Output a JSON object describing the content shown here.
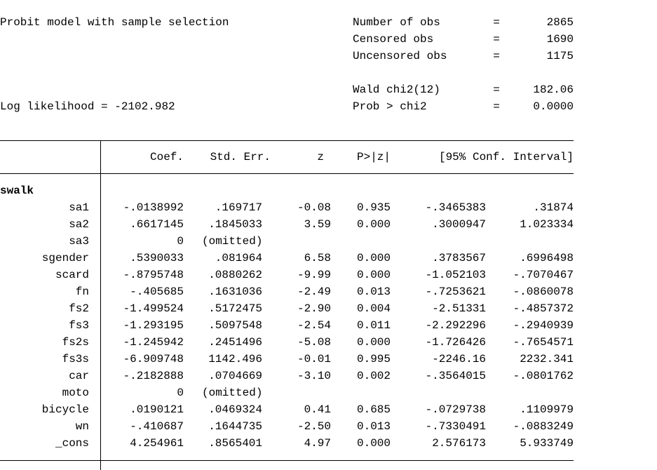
{
  "header": {
    "title": "Probit model with sample selection",
    "log_likelihood": "Log likelihood = -2102.982",
    "stats": [
      {
        "label": "Number of obs",
        "eq": "=",
        "value": "2865"
      },
      {
        "label": "Censored obs",
        "eq": "=",
        "value": "1690"
      },
      {
        "label": "Uncensored obs",
        "eq": "=",
        "value": "1175"
      },
      {
        "label": "Wald chi2(12)",
        "eq": "=",
        "value": "182.06"
      },
      {
        "label": "Prob > chi2",
        "eq": "=",
        "value": "0.0000"
      }
    ]
  },
  "table": {
    "headers": [
      "Coef.",
      "Std. Err.",
      "z",
      "P>|z|",
      "[95% Conf. Interval]"
    ],
    "group": "swalk",
    "rows": [
      [
        "sa1",
        "-.0138992",
        ".169717",
        "-0.08",
        "0.935",
        "-.3465383",
        ".31874"
      ],
      [
        "sa2",
        ".6617145",
        ".1845033",
        "3.59",
        "0.000",
        ".3000947",
        "1.023334"
      ],
      [
        "sa3",
        "0",
        "(omitted)"
      ],
      [
        "sgender",
        ".5390033",
        ".081964",
        "6.58",
        "0.000",
        ".3783567",
        ".6996498"
      ],
      [
        "scard",
        "-.8795748",
        ".0880262",
        "-9.99",
        "0.000",
        "-1.052103",
        "-.7070467"
      ],
      [
        "fn",
        "-.405685",
        ".1631036",
        "-2.49",
        "0.013",
        "-.7253621",
        "-.0860078"
      ],
      [
        "fs2",
        "-1.499524",
        ".5172475",
        "-2.90",
        "0.004",
        "-2.51331",
        "-.4857372"
      ],
      [
        "fs3",
        "-1.293195",
        ".5097548",
        "-2.54",
        "0.011",
        "-2.292296",
        "-.2940939"
      ],
      [
        "fs2s",
        "-1.245942",
        ".2451496",
        "-5.08",
        "0.000",
        "-1.726426",
        "-.7654571"
      ],
      [
        "fs3s",
        "-6.909748",
        "1142.496",
        "-0.01",
        "0.995",
        "-2246.16",
        "2232.341"
      ],
      [
        "car",
        "-.2182888",
        ".0704669",
        "-3.10",
        "0.002",
        "-.3564015",
        "-.0801762"
      ],
      [
        "moto",
        "0",
        "(omitted)"
      ],
      [
        "bicycle",
        ".0190121",
        ".0469324",
        "0.41",
        "0.685",
        "-.0729738",
        ".1109979"
      ],
      [
        "wn",
        "-.410687",
        ".1644735",
        "-2.50",
        "0.013",
        "-.7330491",
        "-.0883249"
      ],
      [
        "_cons",
        "4.254961",
        ".8565401",
        "4.97",
        "0.000",
        "2.576173",
        "5.933749"
      ]
    ]
  }
}
